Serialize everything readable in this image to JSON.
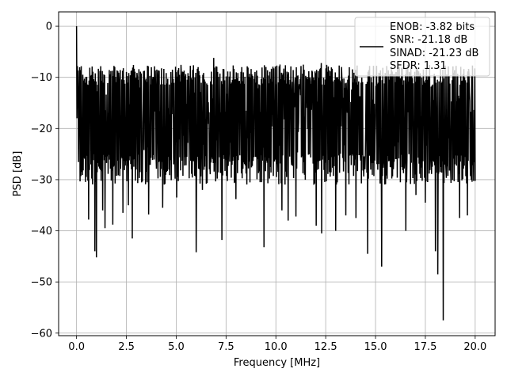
{
  "chart_data": {
    "type": "line",
    "title": "",
    "xlabel": "Frequency [MHz]",
    "ylabel": "PSD [dB]",
    "xlim": [
      -0.9,
      21.0
    ],
    "ylim": [
      -60.5,
      2.8
    ],
    "xticks": [
      0.0,
      2.5,
      5.0,
      7.5,
      10.0,
      12.5,
      15.0,
      17.5,
      20.0
    ],
    "xtick_labels": [
      "0.0",
      "2.5",
      "5.0",
      "7.5",
      "10.0",
      "12.5",
      "15.0",
      "17.5",
      "20.0"
    ],
    "yticks": [
      0,
      -10,
      -20,
      -30,
      -40,
      -50,
      -60
    ],
    "ytick_labels": [
      "0",
      "−10",
      "−20",
      "−30",
      "−40",
      "−50",
      "−60"
    ],
    "grid": true,
    "legend_position": "top-right",
    "line_color": "#000000",
    "legend": {
      "lines": [
        "ENOB: -3.82 bits",
        "SNR: -21.18 dB",
        "SINAD: -21.23 dB",
        "SFDR: 1.31"
      ]
    },
    "series": [
      {
        "x_range": [
          0,
          20
        ],
        "n_points": 1024,
        "typical_band": [
          -28,
          -9
        ],
        "peak": {
          "x": 0.0,
          "y": 0.0
        },
        "deep_nulls": [
          {
            "x": 0.6,
            "y": -37.8
          },
          {
            "x": 0.9,
            "y": -44.0
          },
          {
            "x": 1.0,
            "y": -45.2
          },
          {
            "x": 1.3,
            "y": -36.0
          },
          {
            "x": 1.4,
            "y": -39.5
          },
          {
            "x": 1.8,
            "y": -38.8
          },
          {
            "x": 2.3,
            "y": -36.5
          },
          {
            "x": 2.6,
            "y": -35.0
          },
          {
            "x": 2.8,
            "y": -41.5
          },
          {
            "x": 3.6,
            "y": -36.8
          },
          {
            "x": 4.3,
            "y": -35.5
          },
          {
            "x": 5.0,
            "y": -33.5
          },
          {
            "x": 6.0,
            "y": -44.2
          },
          {
            "x": 6.3,
            "y": -32.0
          },
          {
            "x": 7.3,
            "y": -41.8
          },
          {
            "x": 8.0,
            "y": -33.8
          },
          {
            "x": 9.4,
            "y": -43.2
          },
          {
            "x": 10.3,
            "y": -36.0
          },
          {
            "x": 10.6,
            "y": -38.0
          },
          {
            "x": 11.0,
            "y": -37.2
          },
          {
            "x": 12.0,
            "y": -39.0
          },
          {
            "x": 12.3,
            "y": -40.5
          },
          {
            "x": 13.0,
            "y": -40.0
          },
          {
            "x": 13.5,
            "y": -37.0
          },
          {
            "x": 14.0,
            "y": -37.5
          },
          {
            "x": 14.6,
            "y": -44.5
          },
          {
            "x": 15.3,
            "y": -47.0
          },
          {
            "x": 16.5,
            "y": -40.0
          },
          {
            "x": 17.0,
            "y": -33.0
          },
          {
            "x": 17.5,
            "y": -34.5
          },
          {
            "x": 18.0,
            "y": -44.0
          },
          {
            "x": 18.1,
            "y": -48.5
          },
          {
            "x": 18.4,
            "y": -57.5
          },
          {
            "x": 19.2,
            "y": -37.5
          },
          {
            "x": 19.6,
            "y": -37.0
          }
        ],
        "upper_spikes": [
          {
            "x": 0.05,
            "y": -7.8
          },
          {
            "x": 1.0,
            "y": -10.8
          },
          {
            "x": 3.1,
            "y": -10.5
          },
          {
            "x": 4.8,
            "y": -8.5
          },
          {
            "x": 6.9,
            "y": -6.2
          },
          {
            "x": 8.3,
            "y": -8.0
          },
          {
            "x": 10.2,
            "y": -7.5
          },
          {
            "x": 12.3,
            "y": -7.2
          },
          {
            "x": 14.0,
            "y": -8.5
          },
          {
            "x": 16.3,
            "y": -8.2
          },
          {
            "x": 18.4,
            "y": -8.5
          }
        ]
      }
    ]
  }
}
